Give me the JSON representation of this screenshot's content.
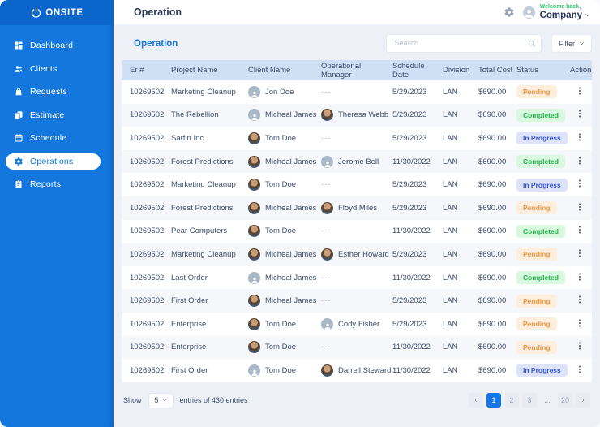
{
  "app": {
    "name": "ONSITE"
  },
  "sidebar": {
    "items": [
      {
        "label": "Dashboard",
        "icon": "dashboard",
        "active": false
      },
      {
        "label": "Clients",
        "icon": "clients",
        "active": false
      },
      {
        "label": "Requests",
        "icon": "requests",
        "active": false
      },
      {
        "label": "Estimate",
        "icon": "estimate",
        "active": false
      },
      {
        "label": "Schedule",
        "icon": "schedule",
        "active": false
      },
      {
        "label": "Operations",
        "icon": "operations",
        "active": true
      },
      {
        "label": "Reports",
        "icon": "reports",
        "active": false
      }
    ]
  },
  "topbar": {
    "title": "Operation",
    "welcome": "Welcome back,",
    "account": "Company"
  },
  "toolbar": {
    "section_title": "Operation",
    "search_placeholder": "Search",
    "filter_label": "Filter"
  },
  "table": {
    "columns": [
      "Er #",
      "Project Name",
      "Client Name",
      "Operational Manager",
      "Schedule Date",
      "Division",
      "Total Cost",
      "Status",
      "Action"
    ],
    "rows": [
      {
        "er": "10269502",
        "project": "Marketing Cleanup",
        "client": {
          "name": "Jon Doe",
          "avatar": "generic"
        },
        "manager": {
          "name": "---",
          "avatar": "none"
        },
        "date": "5/29/2023",
        "division": "LAN",
        "cost": "$690.00",
        "status": "Pending"
      },
      {
        "er": "10269502",
        "project": "The Rebellion",
        "client": {
          "name": "Micheal James",
          "avatar": "generic"
        },
        "manager": {
          "name": "Theresa Webb",
          "avatar": "photo"
        },
        "date": "5/29/2023",
        "division": "LAN",
        "cost": "$690.00",
        "status": "Completed"
      },
      {
        "er": "10269502",
        "project": "Sarfin Inc.",
        "client": {
          "name": "Tom Doe",
          "avatar": "photo"
        },
        "manager": {
          "name": "---",
          "avatar": "none"
        },
        "date": "5/29/2023",
        "division": "LAN",
        "cost": "$690.00",
        "status": "In Progress"
      },
      {
        "er": "10269502",
        "project": "Forest Predictions",
        "client": {
          "name": "Micheal James",
          "avatar": "photo"
        },
        "manager": {
          "name": "Jerome Bell",
          "avatar": "generic"
        },
        "date": "11/30/2022",
        "division": "LAN",
        "cost": "$690.00",
        "status": "Completed"
      },
      {
        "er": "10269502",
        "project": "Marketing Cleanup",
        "client": {
          "name": "Tom Doe",
          "avatar": "photo"
        },
        "manager": {
          "name": "---",
          "avatar": "none"
        },
        "date": "5/29/2023",
        "division": "LAN",
        "cost": "$690.00",
        "status": "In Progress"
      },
      {
        "er": "10269502",
        "project": "Forest Predictions",
        "client": {
          "name": "Micheal James",
          "avatar": "photo"
        },
        "manager": {
          "name": "Floyd Miles",
          "avatar": "photo"
        },
        "date": "5/29/2023",
        "division": "LAN",
        "cost": "$690.00",
        "status": "Pending"
      },
      {
        "er": "10269502",
        "project": "Pear Computers",
        "client": {
          "name": "Tom Doe",
          "avatar": "photo"
        },
        "manager": {
          "name": "---",
          "avatar": "none"
        },
        "date": "11/30/2022",
        "division": "LAN",
        "cost": "$690.00",
        "status": "Completed"
      },
      {
        "er": "10269502",
        "project": "Marketing Cleanup",
        "client": {
          "name": "Micheal James",
          "avatar": "photo"
        },
        "manager": {
          "name": "Esther Howard",
          "avatar": "photo"
        },
        "date": "5/29/2023",
        "division": "LAN",
        "cost": "$690.00",
        "status": "Pending"
      },
      {
        "er": "10269502",
        "project": "Last Order",
        "client": {
          "name": "Micheal James",
          "avatar": "generic"
        },
        "manager": {
          "name": "---",
          "avatar": "none"
        },
        "date": "11/30/2022",
        "division": "LAN",
        "cost": "$690.00",
        "status": "Completed"
      },
      {
        "er": "10269502",
        "project": "First Order",
        "client": {
          "name": "Micheal James",
          "avatar": "photo"
        },
        "manager": {
          "name": "---",
          "avatar": "none"
        },
        "date": "5/29/2023",
        "division": "LAN",
        "cost": "$690.00",
        "status": "Pending"
      },
      {
        "er": "10269502",
        "project": "Enterprise",
        "client": {
          "name": "Tom Doe",
          "avatar": "photo"
        },
        "manager": {
          "name": "Cody Fisher",
          "avatar": "generic"
        },
        "date": "5/29/2023",
        "division": "LAN",
        "cost": "$690.00",
        "status": "Pending"
      },
      {
        "er": "10269502",
        "project": "Enterprise",
        "client": {
          "name": "Tom Doe",
          "avatar": "photo"
        },
        "manager": {
          "name": "---",
          "avatar": "none"
        },
        "date": "11/30/2022",
        "division": "LAN",
        "cost": "$690.00",
        "status": "Pending"
      },
      {
        "er": "10269502",
        "project": "First Order",
        "client": {
          "name": "Tom Doe",
          "avatar": "generic"
        },
        "manager": {
          "name": "Darrell Steward",
          "avatar": "photo"
        },
        "date": "11/30/2022",
        "division": "LAN",
        "cost": "$690.00",
        "status": "In Progress"
      }
    ]
  },
  "footer": {
    "show_label": "Show",
    "page_size": "5",
    "entries_text": "entries of 430 entries",
    "pages": [
      "1",
      "2",
      "3",
      "...",
      "20"
    ],
    "active_page": "1"
  },
  "colors": {
    "accent": "#1677e2",
    "sidebar_top": "#0b66cb",
    "sidebar_body": "#1377de",
    "topbar_bg": "#ffffff",
    "content_bg": "#edf1f7",
    "header_row_bg": "#cfe0f5",
    "row_alt": "#f6f7fa",
    "text_dark": "#3d4d6b",
    "welcome_green": "#2dc56f",
    "pending_bg": "#fdeedd",
    "pending_text": "#f0953f",
    "completed_bg": "#d8f8df",
    "completed_text": "#27b44f",
    "inprogress_bg": "#dee3fa",
    "inprogress_text": "#3355d8"
  }
}
